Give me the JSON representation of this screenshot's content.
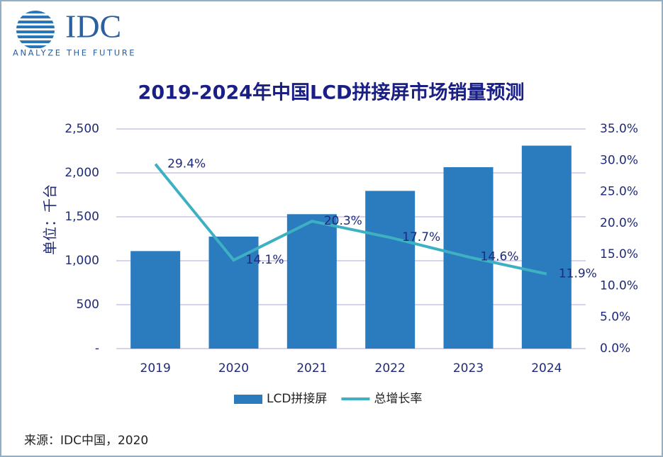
{
  "logo": {
    "name": "IDC",
    "tagline": "ANALYZE THE FUTURE"
  },
  "chart_data": {
    "type": "bar",
    "title": "2019-2024年中国LCD拼接屏市场销量预测",
    "y_label": "单位：千台",
    "source": "来源：IDC中国，2020",
    "categories": [
      "2019",
      "2020",
      "2021",
      "2022",
      "2023",
      "2024"
    ],
    "series": [
      {
        "name": "LCD拼接屏",
        "type": "bar",
        "color": "#2b7bbf",
        "values": [
          1110,
          1275,
          1530,
          1795,
          2065,
          2310
        ]
      },
      {
        "name": "总增长率",
        "type": "line",
        "axis": "y2",
        "color": "#3db1c2",
        "values": [
          29.4,
          14.1,
          20.3,
          17.7,
          14.6,
          11.9
        ],
        "value_labels": [
          "29.4%",
          "14.1%",
          "20.3%",
          "17.7%",
          "14.6%",
          "11.9%"
        ]
      }
    ],
    "ylim": [
      0,
      2500
    ],
    "yticks": [
      {
        "value": 0,
        "label": "-"
      },
      500,
      {
        "value": 1000,
        "label": "1,000"
      },
      {
        "value": 1500,
        "label": "1,500"
      },
      {
        "value": 2000,
        "label": "2,000"
      },
      {
        "value": 2500,
        "label": "2,500"
      }
    ],
    "y2lim": [
      0,
      35
    ],
    "y2ticks": [
      {
        "value": 0,
        "label": "0.0%"
      },
      {
        "value": 5,
        "label": "5.0%"
      },
      {
        "value": 10,
        "label": "10.0%"
      },
      {
        "value": 15,
        "label": "15.0%"
      },
      {
        "value": 20,
        "label": "20.0%"
      },
      {
        "value": 25,
        "label": "25.0%"
      },
      {
        "value": 30,
        "label": "30.0%"
      },
      {
        "value": 35,
        "label": "35.0%"
      }
    ],
    "grid": true,
    "legend": "bottom"
  }
}
